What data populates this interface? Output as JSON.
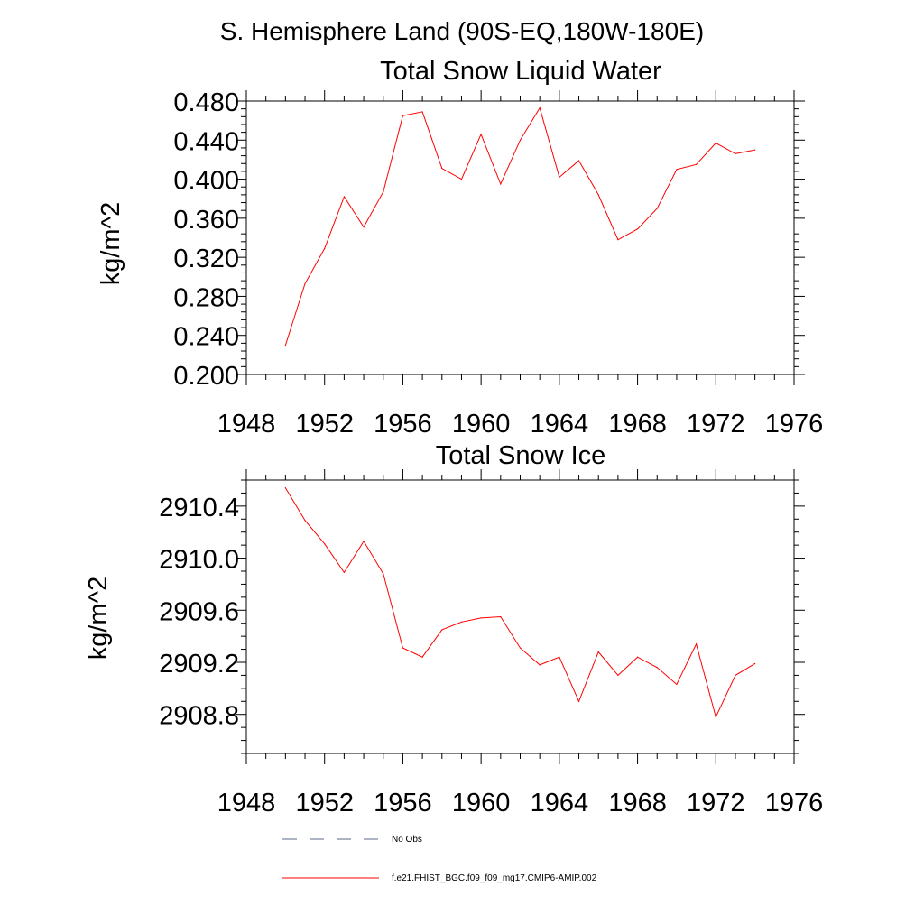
{
  "header": {
    "title": "S. Hemisphere Land (90S-EQ,180W-180E)"
  },
  "chart_data": [
    {
      "type": "line",
      "title": "Total Snow Liquid Water",
      "xlabel": "",
      "ylabel": "kg/m^2",
      "xlim": [
        1948,
        1976
      ],
      "ylim": [
        0.2,
        0.48
      ],
      "grid": false,
      "x_ticks": [
        1948,
        1952,
        1956,
        1960,
        1964,
        1968,
        1972,
        1976
      ],
      "x_tick_labels": [
        "1948",
        "1952",
        "1956",
        "1960",
        "1964",
        "1968",
        "1972",
        "1976"
      ],
      "y_ticks": [
        0.2,
        0.24,
        0.28,
        0.32,
        0.36,
        0.4,
        0.44,
        0.48
      ],
      "y_tick_labels": [
        "0.200",
        "0.240",
        "0.280",
        "0.320",
        "0.360",
        "0.400",
        "0.440",
        "0.480"
      ],
      "series": [
        {
          "name": "f.e21.FHIST_BGC.f09_f09_mg17.CMIP6-AMIP.002",
          "color": "#ff0000",
          "x": [
            1950,
            1951,
            1952,
            1953,
            1954,
            1955,
            1956,
            1957,
            1958,
            1959,
            1960,
            1961,
            1962,
            1963,
            1964,
            1965,
            1966,
            1967,
            1968,
            1969,
            1970,
            1971,
            1972,
            1973,
            1974
          ],
          "values": [
            0.23,
            0.293,
            0.329,
            0.382,
            0.351,
            0.387,
            0.465,
            0.469,
            0.411,
            0.4,
            0.446,
            0.395,
            0.44,
            0.473,
            0.402,
            0.419,
            0.384,
            0.338,
            0.349,
            0.37,
            0.41,
            0.415,
            0.437,
            0.426,
            0.43
          ]
        }
      ]
    },
    {
      "type": "line",
      "title": "Total Snow Ice",
      "xlabel": "",
      "ylabel": "kg/m^2",
      "xlim": [
        1948,
        1976
      ],
      "ylim": [
        2908.5,
        2910.6
      ],
      "grid": false,
      "x_ticks": [
        1948,
        1952,
        1956,
        1960,
        1964,
        1968,
        1972,
        1976
      ],
      "x_tick_labels": [
        "1948",
        "1952",
        "1956",
        "1960",
        "1964",
        "1968",
        "1972",
        "1976"
      ],
      "y_ticks": [
        2908.8,
        2909.2,
        2909.6,
        2910.0,
        2910.4
      ],
      "y_tick_labels": [
        "2908.8",
        "2909.2",
        "2909.6",
        "2910.0",
        "2910.4"
      ],
      "series": [
        {
          "name": "f.e21.FHIST_BGC.f09_f09_mg17.CMIP6-AMIP.002",
          "color": "#ff0000",
          "x": [
            1950,
            1951,
            1952,
            1953,
            1954,
            1955,
            1956,
            1957,
            1958,
            1959,
            1960,
            1961,
            1962,
            1963,
            1964,
            1965,
            1966,
            1967,
            1968,
            1969,
            1970,
            1971,
            1972,
            1973,
            1974
          ],
          "values": [
            2910.54,
            2910.29,
            2910.11,
            2909.89,
            2910.13,
            2909.88,
            2909.31,
            2909.24,
            2909.45,
            2909.51,
            2909.54,
            2909.55,
            2909.31,
            2909.18,
            2909.24,
            2908.9,
            2909.28,
            2909.1,
            2909.24,
            2909.16,
            2909.03,
            2909.34,
            2908.78,
            2909.1,
            2909.19
          ]
        }
      ]
    }
  ],
  "legend": {
    "items": [
      {
        "label": "No Obs",
        "color": "#5a6a8a",
        "style": "dashed"
      },
      {
        "label": "f.e21.FHIST_BGC.f09_f09_mg17.CMIP6-AMIP.002",
        "color": "#ff0000",
        "style": "solid"
      }
    ]
  }
}
